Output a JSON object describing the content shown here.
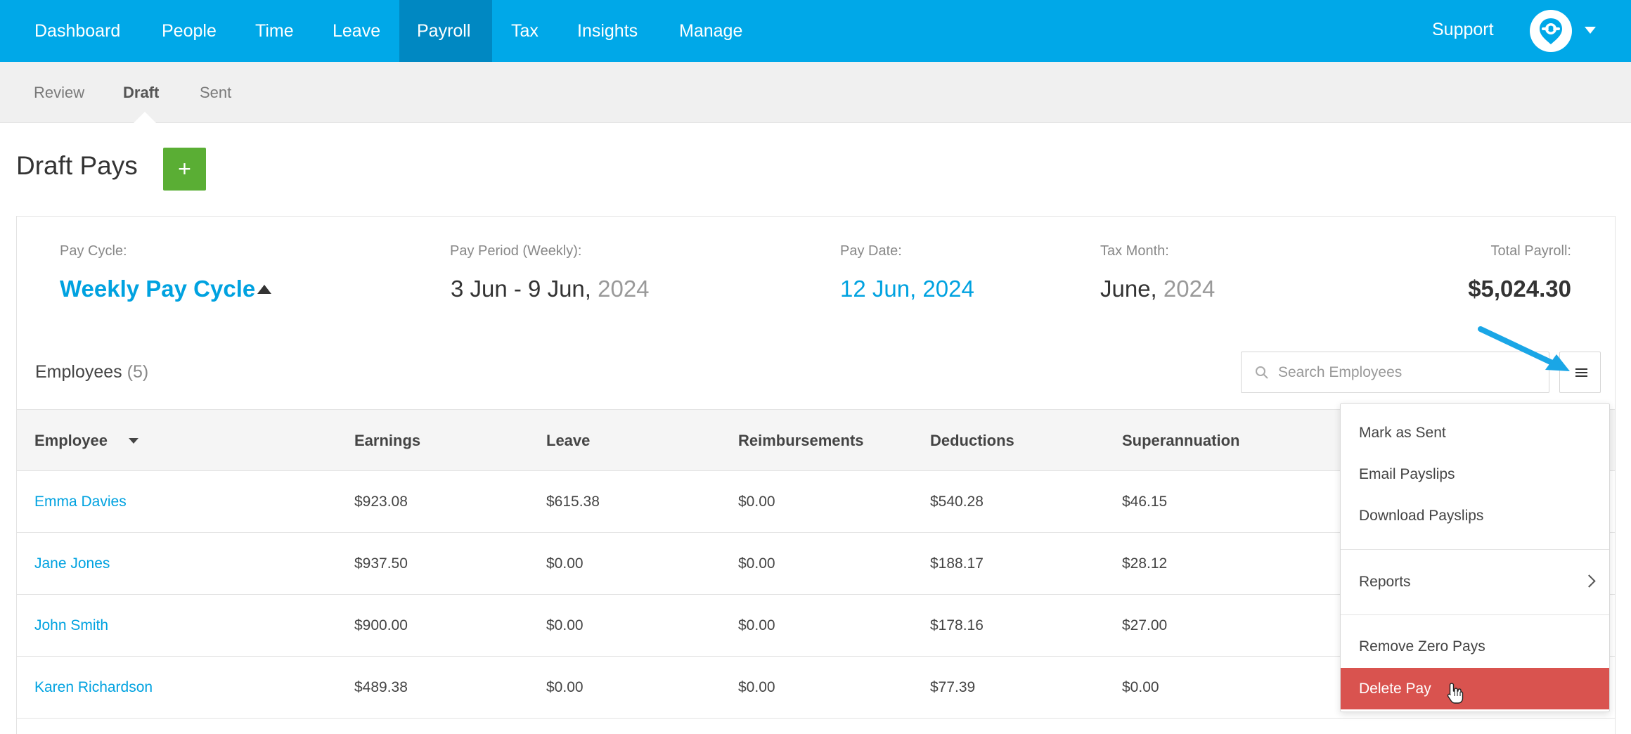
{
  "topnav": {
    "items": [
      "Dashboard",
      "People",
      "Time",
      "Leave",
      "Payroll",
      "Tax",
      "Insights",
      "Manage"
    ],
    "active": "Payroll",
    "support_label": "Support"
  },
  "subnav": {
    "items": [
      "Review",
      "Draft",
      "Sent"
    ],
    "active": "Draft"
  },
  "page": {
    "title": "Draft Pays",
    "add_label": "+"
  },
  "summary": {
    "pay_cycle_label": "Pay Cycle:",
    "pay_cycle_value": "Weekly Pay Cycle",
    "pay_period_label": "Pay Period (Weekly):",
    "pay_period_value": "3 Jun - 9 Jun,",
    "pay_period_year": "2024",
    "pay_date_label": "Pay Date:",
    "pay_date_value": "12 Jun, 2024",
    "tax_month_label": "Tax Month:",
    "tax_month_value": "June,",
    "tax_month_year": "2024",
    "total_label": "Total Payroll:",
    "total_value": "$5,024.30"
  },
  "employees": {
    "title": "Employees",
    "count": "(5)",
    "search_placeholder": "Search Employees"
  },
  "table": {
    "headers": [
      "Employee",
      "Earnings",
      "Leave",
      "Reimbursements",
      "Deductions",
      "Superannuation"
    ],
    "rows": [
      [
        "Emma Davies",
        "$923.08",
        "$615.38",
        "$0.00",
        "$540.28",
        "$46.15"
      ],
      [
        "Jane Jones",
        "$937.50",
        "$0.00",
        "$0.00",
        "$188.17",
        "$28.12"
      ],
      [
        "John Smith",
        "$900.00",
        "$0.00",
        "$0.00",
        "$178.16",
        "$27.00"
      ],
      [
        "Karen Richardson",
        "$489.38",
        "$0.00",
        "$0.00",
        "$77.39",
        "$0.00"
      ]
    ]
  },
  "menu": {
    "items": [
      "Mark as Sent",
      "Email Payslips",
      "Download Payslips",
      "Reports",
      "Remove Zero Pays",
      "Delete Pay"
    ],
    "highlighted": "Delete Pay"
  },
  "colors": {
    "brand": "#00a8e8",
    "nav_active": "#0088c2",
    "add_button": "#5aae34",
    "link": "#00a2e0",
    "danger": "#d9534f"
  },
  "icons": [
    "avatar-logo-icon",
    "caret-down-icon",
    "caret-up-icon",
    "search-icon",
    "hamburger-menu-icon",
    "chevron-right-icon",
    "pointer-hand-cursor-icon",
    "annotation-arrow-icon"
  ]
}
